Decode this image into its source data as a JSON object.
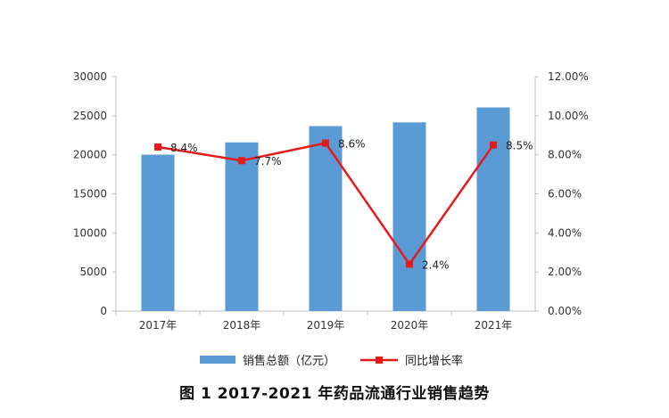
{
  "chart_data": {
    "type": "bar",
    "categories": [
      "2017年",
      "2018年",
      "2019年",
      "2020年",
      "2021年"
    ],
    "series": [
      {
        "name": "销售总额（亿元）",
        "type": "bar",
        "axis": "left",
        "color": "#5B9BD5",
        "values": [
          20016,
          21586,
          23668,
          24149,
          26064
        ]
      },
      {
        "name": "同比增长率",
        "type": "line",
        "axis": "right",
        "color": "#E51A1A",
        "values": [
          8.4,
          7.7,
          8.6,
          2.4,
          8.5
        ],
        "labels": [
          "8.4%",
          "7.7%",
          "8.6%",
          "2.4%",
          "8.5%"
        ]
      }
    ],
    "y_left": {
      "min": 0,
      "max": 30000,
      "ticks": [
        "0",
        "5000",
        "10000",
        "15000",
        "20000",
        "25000",
        "30000"
      ]
    },
    "y_right": {
      "min": 0,
      "max": 12,
      "ticks": [
        "0.00%",
        "2.00%",
        "4.00%",
        "6.00%",
        "8.00%",
        "10.00%",
        "12.00%"
      ]
    },
    "grid": false,
    "legend_position": "bottom"
  },
  "caption": "图 1   2017-2021 年药品流通行业销售趋势"
}
